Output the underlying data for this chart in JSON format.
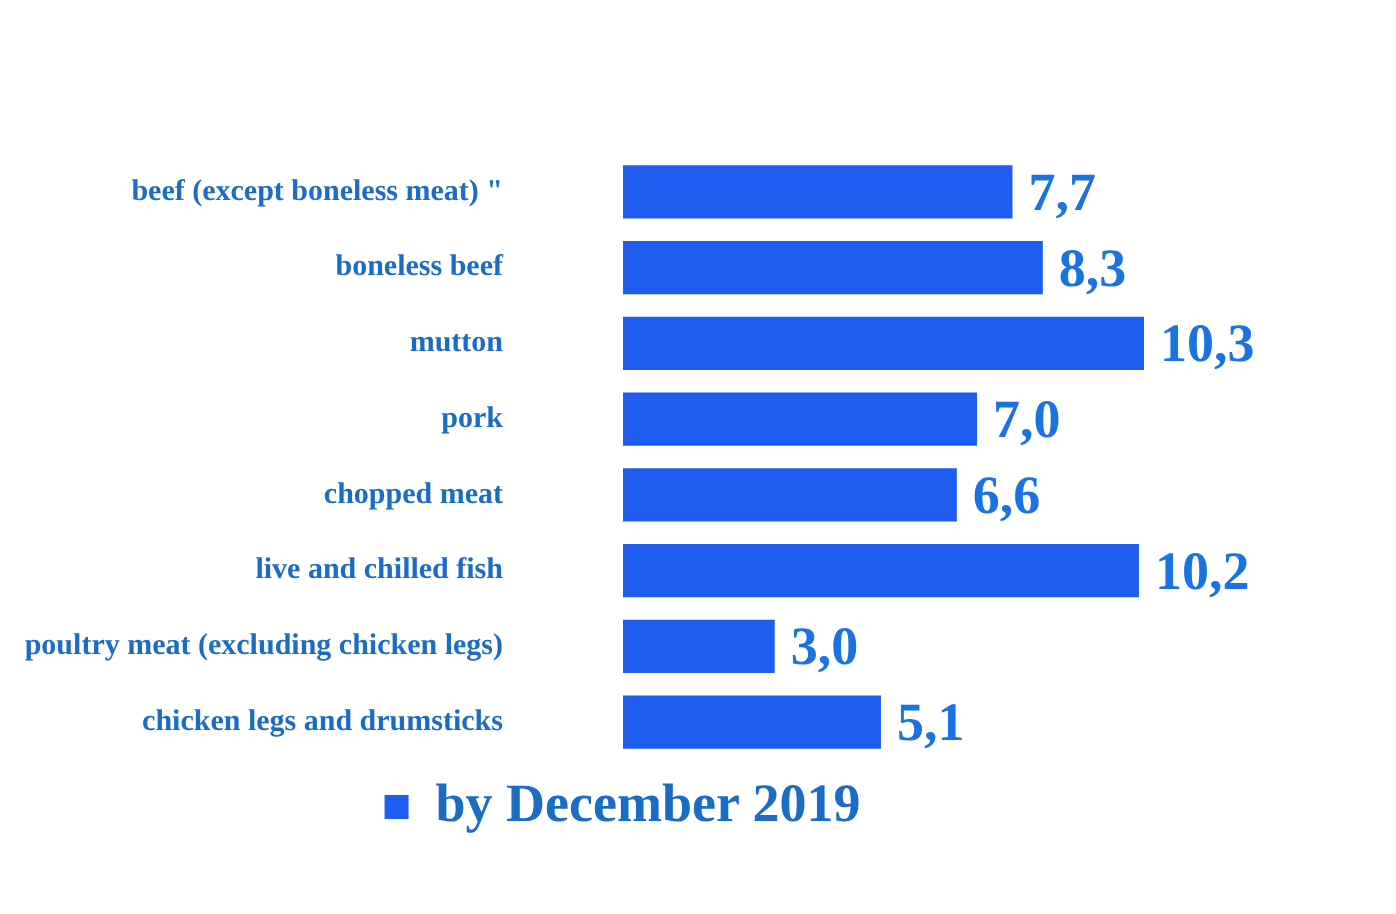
{
  "chart_data": {
    "type": "bar",
    "orientation": "horizontal",
    "categories": [
      "beef (except boneless meat) \"",
      "boneless beef",
      "mutton",
      "pork",
      "chopped meat",
      "live and chilled fish",
      "poultry meat (excluding chicken legs)",
      "chicken legs and drumsticks"
    ],
    "series": [
      {
        "name": "by December 2019",
        "color": "#1f5cf0",
        "values": [
          7.7,
          8.3,
          10.3,
          7.0,
          6.6,
          10.2,
          3.0,
          5.1
        ],
        "value_labels": [
          "7,7",
          "8,3",
          "10,3",
          "7,0",
          "6,6",
          "10,2",
          "3,0",
          "5,1"
        ]
      }
    ],
    "tick_labels": "y",
    "grid": false,
    "legend": "bottom"
  }
}
